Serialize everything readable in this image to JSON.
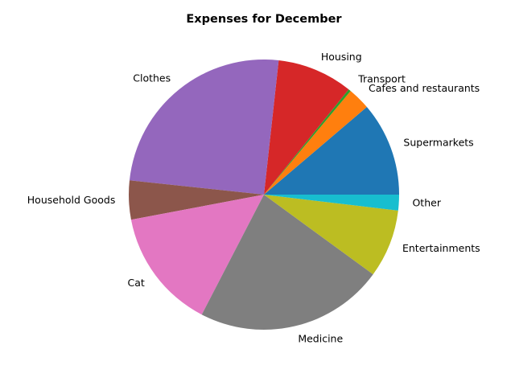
{
  "chart_data": {
    "type": "pie",
    "title": "Expenses for December",
    "start_angle_deg": 0,
    "direction": "counterclockwise",
    "legend": "none",
    "slices": [
      {
        "label": "Supermarkets",
        "value": 11.3,
        "color": "#1f77b4"
      },
      {
        "label": "Cafes and restaurants",
        "value": 2.7,
        "color": "#ff7f0e"
      },
      {
        "label": "Transport",
        "value": 0.3,
        "color": "#2ca02c"
      },
      {
        "label": "Housing",
        "value": 9.1,
        "color": "#d62728"
      },
      {
        "label": "Clothes",
        "value": 25.2,
        "color": "#9467bd"
      },
      {
        "label": "Household Goods",
        "value": 4.7,
        "color": "#8c564b"
      },
      {
        "label": "Cat",
        "value": 14.5,
        "color": "#e377c2"
      },
      {
        "label": "Medicine",
        "value": 22.7,
        "color": "#7f7f7f"
      },
      {
        "label": "Entertainments",
        "value": 8.2,
        "color": "#bcbd22"
      },
      {
        "label": "Other",
        "value": 1.9,
        "color": "#17becf"
      }
    ]
  }
}
